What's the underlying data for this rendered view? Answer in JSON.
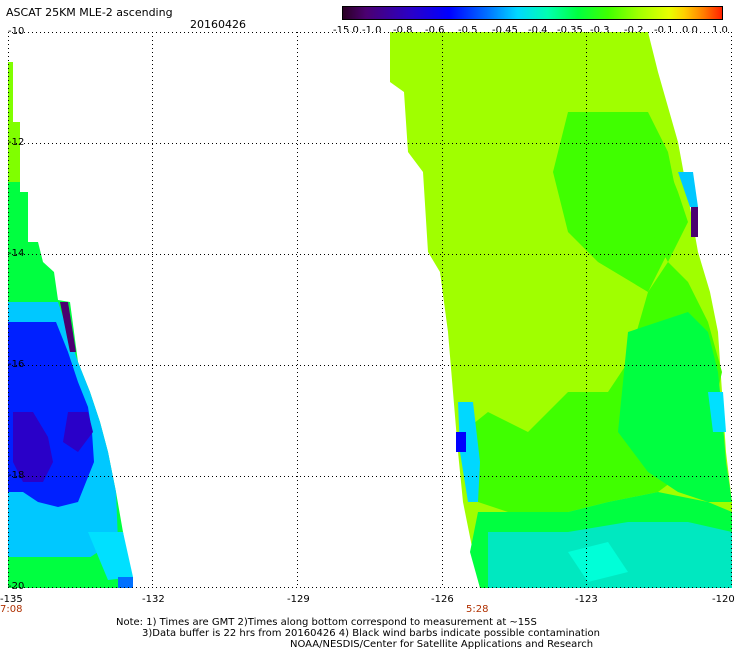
{
  "header": {
    "title": "ASCAT 25KM MLE-2 ascending",
    "date": "20160426"
  },
  "colorbar": {
    "labels": [
      "-15.0",
      "-1.0",
      "-0.8",
      "-0.6",
      "-0.5",
      "-0.45",
      "-0.4",
      "-0.35",
      "-0.3",
      "-0.2",
      "-0.1",
      "0.0",
      "1.0"
    ]
  },
  "map": {
    "y_ticks": [
      "-10",
      "-12",
      "-14",
      "-16",
      "-18",
      "-20"
    ],
    "x_ticks": [
      "-135",
      "-132",
      "-129",
      "-126",
      "-123",
      "-120"
    ],
    "pass_times": [
      "7:08",
      "5:28"
    ],
    "colors": {
      "gridline": "#000000",
      "time_label": "#b03000",
      "low": "#0000ff",
      "mid": "#00ff40",
      "high": "#a0ff00"
    }
  },
  "notes": {
    "line1": "Note: 1) Times are GMT 2)Times along bottom correspond to measurement at ~15S",
    "line2": "3)Data buffer is 22 hrs from 20160426 4) Black wind barbs indicate possible contamination",
    "line3": "NOAA/NESDIS/Center for Satellite Applications and Research"
  }
}
